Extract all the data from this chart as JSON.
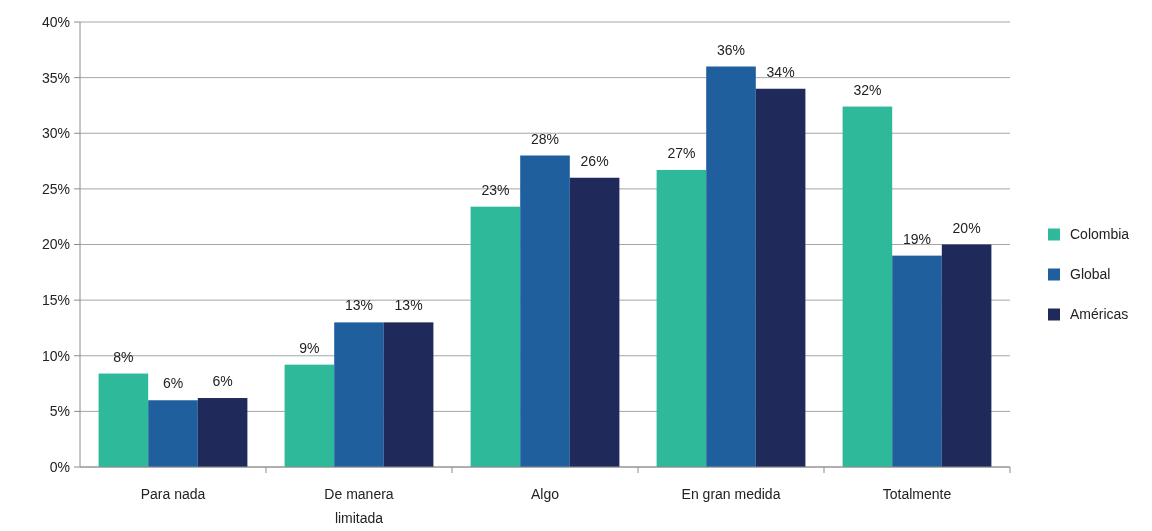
{
  "chart_data": {
    "type": "bar",
    "categories": [
      "Para nada",
      "De manera limitada",
      "Algo",
      "En gran medida",
      "Totalmente"
    ],
    "series": [
      {
        "name": "Colombia",
        "color": "#2eb99a",
        "values": [
          8.4,
          9.2,
          23.4,
          26.7,
          32.4
        ],
        "value_labels": [
          "8%",
          "9%",
          "23%",
          "27%",
          "32%"
        ]
      },
      {
        "name": "Global",
        "color": "#1f5f9e",
        "values": [
          6.0,
          13.0,
          28.0,
          36.0,
          19.0
        ],
        "value_labels": [
          "6%",
          "13%",
          "28%",
          "36%",
          "19%"
        ]
      },
      {
        "name": "Américas",
        "color": "#1f2a5a",
        "values": [
          6.2,
          13.0,
          26.0,
          34.0,
          20.0
        ],
        "value_labels": [
          "6%",
          "13%",
          "26%",
          "34%",
          "20%"
        ]
      }
    ],
    "ylim": [
      0,
      40
    ],
    "yticks": [
      {
        "value": 0,
        "label": "0%"
      },
      {
        "value": 5,
        "label": "5%"
      },
      {
        "value": 10,
        "label": "10%"
      },
      {
        "value": 15,
        "label": "15%"
      },
      {
        "value": 20,
        "label": "20%"
      },
      {
        "value": 25,
        "label": "25%"
      },
      {
        "value": 30,
        "label": "30%"
      },
      {
        "value": 35,
        "label": "35%"
      },
      {
        "value": 40,
        "label": "40%"
      }
    ],
    "grid": "y",
    "legend": "right"
  }
}
